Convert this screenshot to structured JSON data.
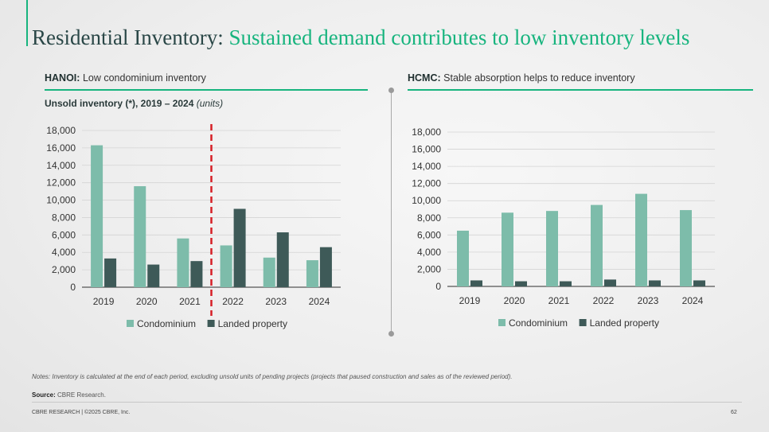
{
  "title": {
    "part1": "Residential Inventory:",
    "part2": "Sustained demand contributes to low inventory levels"
  },
  "left_panel": {
    "region": "HANOI:",
    "caption": "Low condominium inventory",
    "subtitle": "Unsold inventory (*), 2019 – 2024",
    "subtitle_unit": "(units)"
  },
  "right_panel": {
    "region": "HCMC:",
    "caption": "Stable absorption helps to reduce inventory"
  },
  "notes": "Notes: Inventory is calculated at the end of each period, excluding unsold units of pending projects (projects that paused construction and sales as of the reviewed period).",
  "source": {
    "label": "Source:",
    "text": "CBRE Research."
  },
  "footer": "CBRE RESEARCH | ©2025 CBRE, Inc.",
  "page_number": "62",
  "colors": {
    "accent": "#17b47e",
    "condominium": "#7dbcaa",
    "landed": "#3e5a58",
    "marker": "#d61f26"
  },
  "chart_data": [
    {
      "type": "bar",
      "categories": [
        "2019",
        "2020",
        "2021",
        "2022",
        "2023",
        "2024"
      ],
      "series": [
        {
          "name": "Condominium",
          "values": [
            16300,
            11600,
            5600,
            4800,
            3400,
            3100
          ]
        },
        {
          "name": "Landed property",
          "values": [
            3300,
            2600,
            3000,
            9000,
            6300,
            4600
          ]
        }
      ],
      "ylim": [
        0,
        18000
      ],
      "yticks": [
        "0",
        "2,000",
        "4,000",
        "6,000",
        "8,000",
        "10,000",
        "12,000",
        "14,000",
        "16,000",
        "18,000"
      ],
      "grid": true,
      "legend": "bottom",
      "marker_after_category": "2021"
    },
    {
      "type": "bar",
      "categories": [
        "2019",
        "2020",
        "2021",
        "2022",
        "2023",
        "2024"
      ],
      "series": [
        {
          "name": "Condominium",
          "values": [
            6500,
            8600,
            8800,
            9500,
            10800,
            8900
          ]
        },
        {
          "name": "Landed property",
          "values": [
            700,
            600,
            600,
            800,
            700,
            700
          ]
        }
      ],
      "ylim": [
        0,
        18000
      ],
      "yticks": [
        "0",
        "2,000",
        "4,000",
        "6,000",
        "8,000",
        "10,000",
        "12,000",
        "14,000",
        "16,000",
        "18,000"
      ],
      "grid": true,
      "legend": "bottom"
    }
  ]
}
